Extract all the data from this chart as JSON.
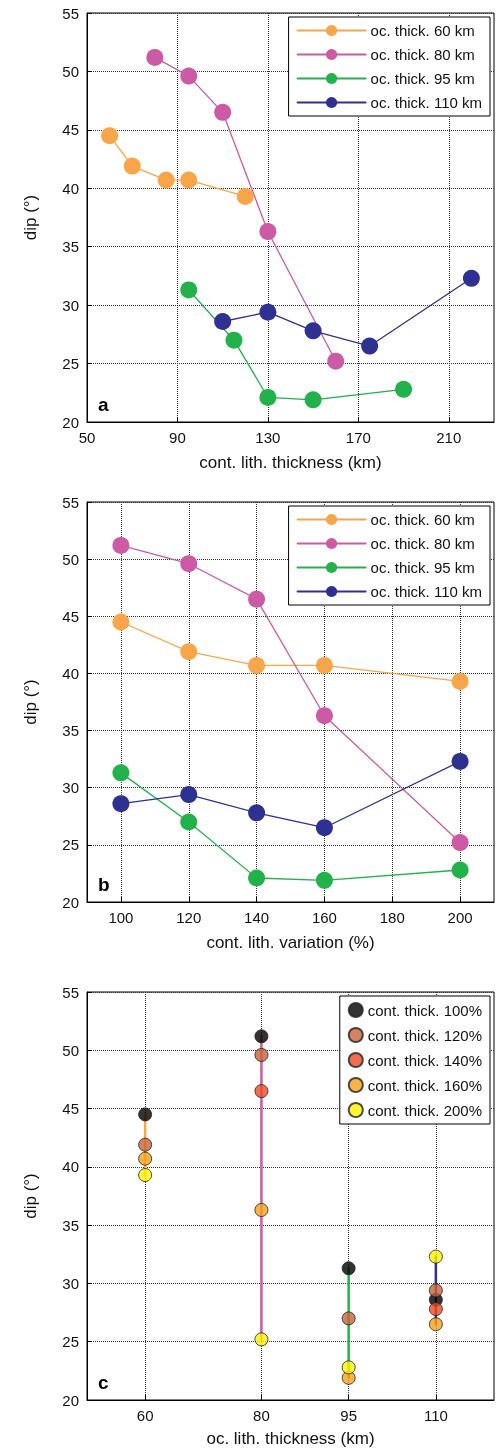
{
  "chart_data": [
    {
      "type": "line",
      "xlabel": "cont. lith. thickness (km)",
      "ylabel": "dip (°)",
      "annotations": [
        "a"
      ],
      "xlim": [
        50,
        230
      ],
      "xticks": [
        50,
        90,
        130,
        170,
        210
      ],
      "ylim": [
        20,
        55
      ],
      "yticks": [
        20,
        25,
        30,
        35,
        40,
        45,
        50,
        55
      ],
      "grid": true,
      "legend": "top right",
      "marker": "circle",
      "line_style": "solid",
      "series": [
        {
          "name": "oc. thick. 60 km",
          "color": "#f9a64a",
          "x": [
            60,
            70,
            85,
            95,
            120
          ],
          "values": [
            44.5,
            41.9,
            40.7,
            40.7,
            39.3
          ]
        },
        {
          "name": "oc. thick. 80 km",
          "color": "#cc5aa5",
          "x": [
            80,
            95,
            110,
            130,
            160
          ],
          "values": [
            51.2,
            49.6,
            46.5,
            36.3,
            25.2
          ]
        },
        {
          "name": "oc. thick. 95 km",
          "color": "#22b24c",
          "x": [
            95,
            115,
            130,
            150,
            190
          ],
          "values": [
            31.3,
            27.0,
            22.1,
            21.9,
            22.8
          ]
        },
        {
          "name": "oc. thick. 110 km",
          "color": "#2e3192",
          "x": [
            110,
            130,
            150,
            175,
            220
          ],
          "values": [
            28.6,
            29.4,
            27.8,
            26.5,
            32.3
          ]
        }
      ]
    },
    {
      "type": "line",
      "xlabel": "cont. lith. variation (%)",
      "ylabel": "dip (°)",
      "annotations": [
        "b"
      ],
      "x": [
        100,
        120,
        140,
        160,
        200
      ],
      "xlim": [
        90,
        210
      ],
      "xticks": [
        100,
        120,
        140,
        160,
        180,
        200
      ],
      "ylim": [
        20,
        55
      ],
      "yticks": [
        20,
        25,
        30,
        35,
        40,
        45,
        50,
        55
      ],
      "grid": true,
      "legend": "top right",
      "marker": "circle",
      "line_style": "solid",
      "series": [
        {
          "name": "oc. thick. 60 km",
          "color": "#f9a64a",
          "values": [
            44.5,
            41.9,
            40.7,
            40.7,
            39.3
          ]
        },
        {
          "name": "oc. thick. 80 km",
          "color": "#cc5aa5",
          "values": [
            51.2,
            49.6,
            46.5,
            36.3,
            25.2
          ]
        },
        {
          "name": "oc. thick. 95 km",
          "color": "#22b24c",
          "values": [
            31.3,
            27.0,
            22.1,
            21.9,
            22.8
          ]
        },
        {
          "name": "oc. thick. 110 km",
          "color": "#2e3192",
          "values": [
            28.6,
            29.4,
            27.8,
            26.5,
            32.3
          ]
        }
      ]
    },
    {
      "type": "scatter",
      "xlabel": "oc. lith. thickness (km)",
      "ylabel": "dip (°)",
      "annotations": [
        "c"
      ],
      "x": [
        60,
        80,
        95,
        110
      ],
      "xlim": [
        50,
        120
      ],
      "xticks": [
        60,
        80,
        95,
        110
      ],
      "ylim": [
        20,
        55
      ],
      "yticks": [
        20,
        25,
        30,
        35,
        40,
        45,
        50,
        55
      ],
      "grid": true,
      "legend": "top right",
      "marker": "circle",
      "series": [
        {
          "type": "line",
          "marker": "none",
          "color": "#f9a64a",
          "x": [
            60,
            60
          ],
          "values": [
            44.5,
            39.3
          ]
        },
        {
          "type": "line",
          "marker": "none",
          "color": "#cc5aa5",
          "x": [
            80,
            80
          ],
          "values": [
            51.2,
            25.2
          ]
        },
        {
          "type": "line",
          "marker": "none",
          "color": "#22b24c",
          "x": [
            95,
            95
          ],
          "values": [
            31.3,
            21.9
          ]
        },
        {
          "type": "line",
          "marker": "none",
          "color": "#2e3192",
          "x": [
            110,
            110
          ],
          "values": [
            32.3,
            26.5
          ]
        },
        {
          "name": "cont. thick. 100%",
          "color": "#000000",
          "values": [
            44.5,
            51.2,
            31.3,
            28.6
          ]
        },
        {
          "name": "cont. thick. 120%",
          "color": "#c8643a",
          "values": [
            41.9,
            49.6,
            27.0,
            29.4
          ]
        },
        {
          "name": "cont. thick. 140%",
          "color": "#ee4b23",
          "values": [
            null,
            46.5,
            null,
            27.8
          ]
        },
        {
          "name": "cont. thick. 160%",
          "color": "#f7a11a",
          "values": [
            40.7,
            36.3,
            21.9,
            26.5
          ]
        },
        {
          "name": "cont. thick. 200%",
          "color": "#fff200",
          "values": [
            39.3,
            25.2,
            22.8,
            32.3
          ]
        }
      ]
    }
  ]
}
